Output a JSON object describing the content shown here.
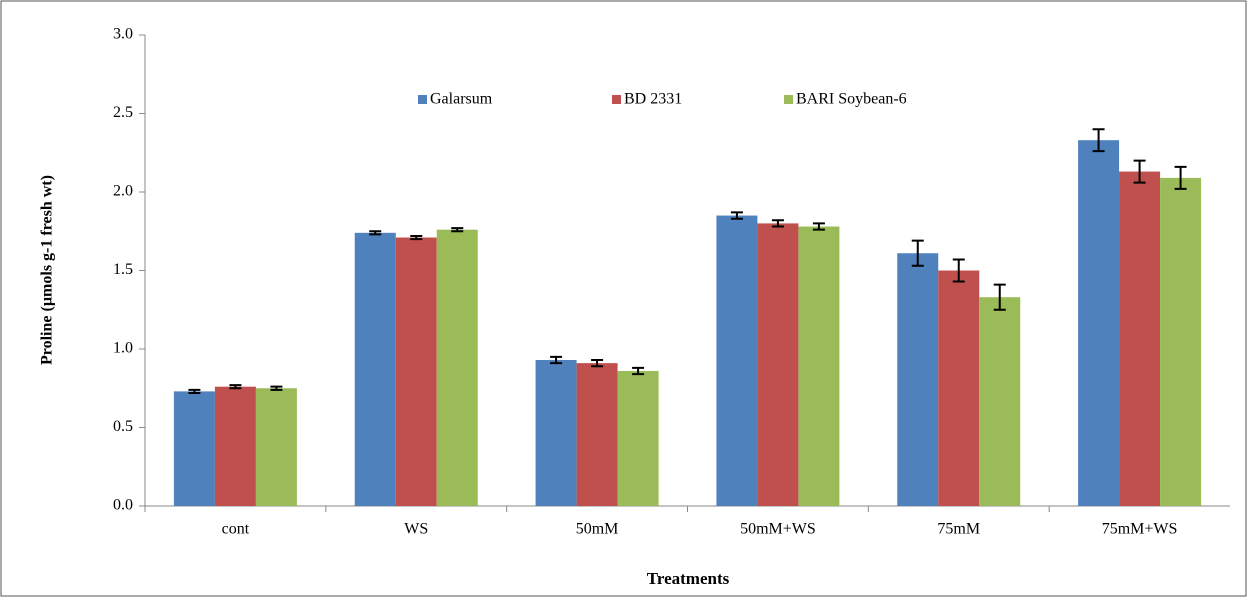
{
  "chart_data": {
    "type": "bar",
    "y_label": "Proline (µmols g-1 fresh wt)",
    "x_label": "Treatments",
    "categories": [
      "cont",
      "WS",
      "50mM",
      "50mM+WS",
      "75mM",
      "75mM+WS"
    ],
    "series": [
      {
        "name": "Galarsum",
        "color": "#4f81bd",
        "values": [
          0.73,
          1.74,
          0.93,
          1.85,
          1.61,
          2.33
        ],
        "errors": [
          0.01,
          0.01,
          0.02,
          0.02,
          0.08,
          0.07
        ]
      },
      {
        "name": "BD 2331",
        "color": "#c0504d",
        "values": [
          0.76,
          1.71,
          0.91,
          1.8,
          1.5,
          2.13
        ],
        "errors": [
          0.01,
          0.01,
          0.02,
          0.02,
          0.07,
          0.07
        ]
      },
      {
        "name": "BARI Soybean-6",
        "color": "#9bbb59",
        "values": [
          0.75,
          1.76,
          0.86,
          1.78,
          1.33,
          2.09
        ],
        "errors": [
          0.01,
          0.01,
          0.02,
          0.02,
          0.08,
          0.07
        ]
      }
    ],
    "ylim": [
      0,
      3
    ],
    "yticks": [
      {
        "value": 0,
        "label": "0.0"
      },
      0.5,
      {
        "value": 1,
        "label": "1.0"
      },
      1.5,
      {
        "value": 2,
        "label": "2.0"
      },
      2.5,
      {
        "value": 3,
        "label": "3.0"
      }
    ],
    "legend": "top"
  }
}
